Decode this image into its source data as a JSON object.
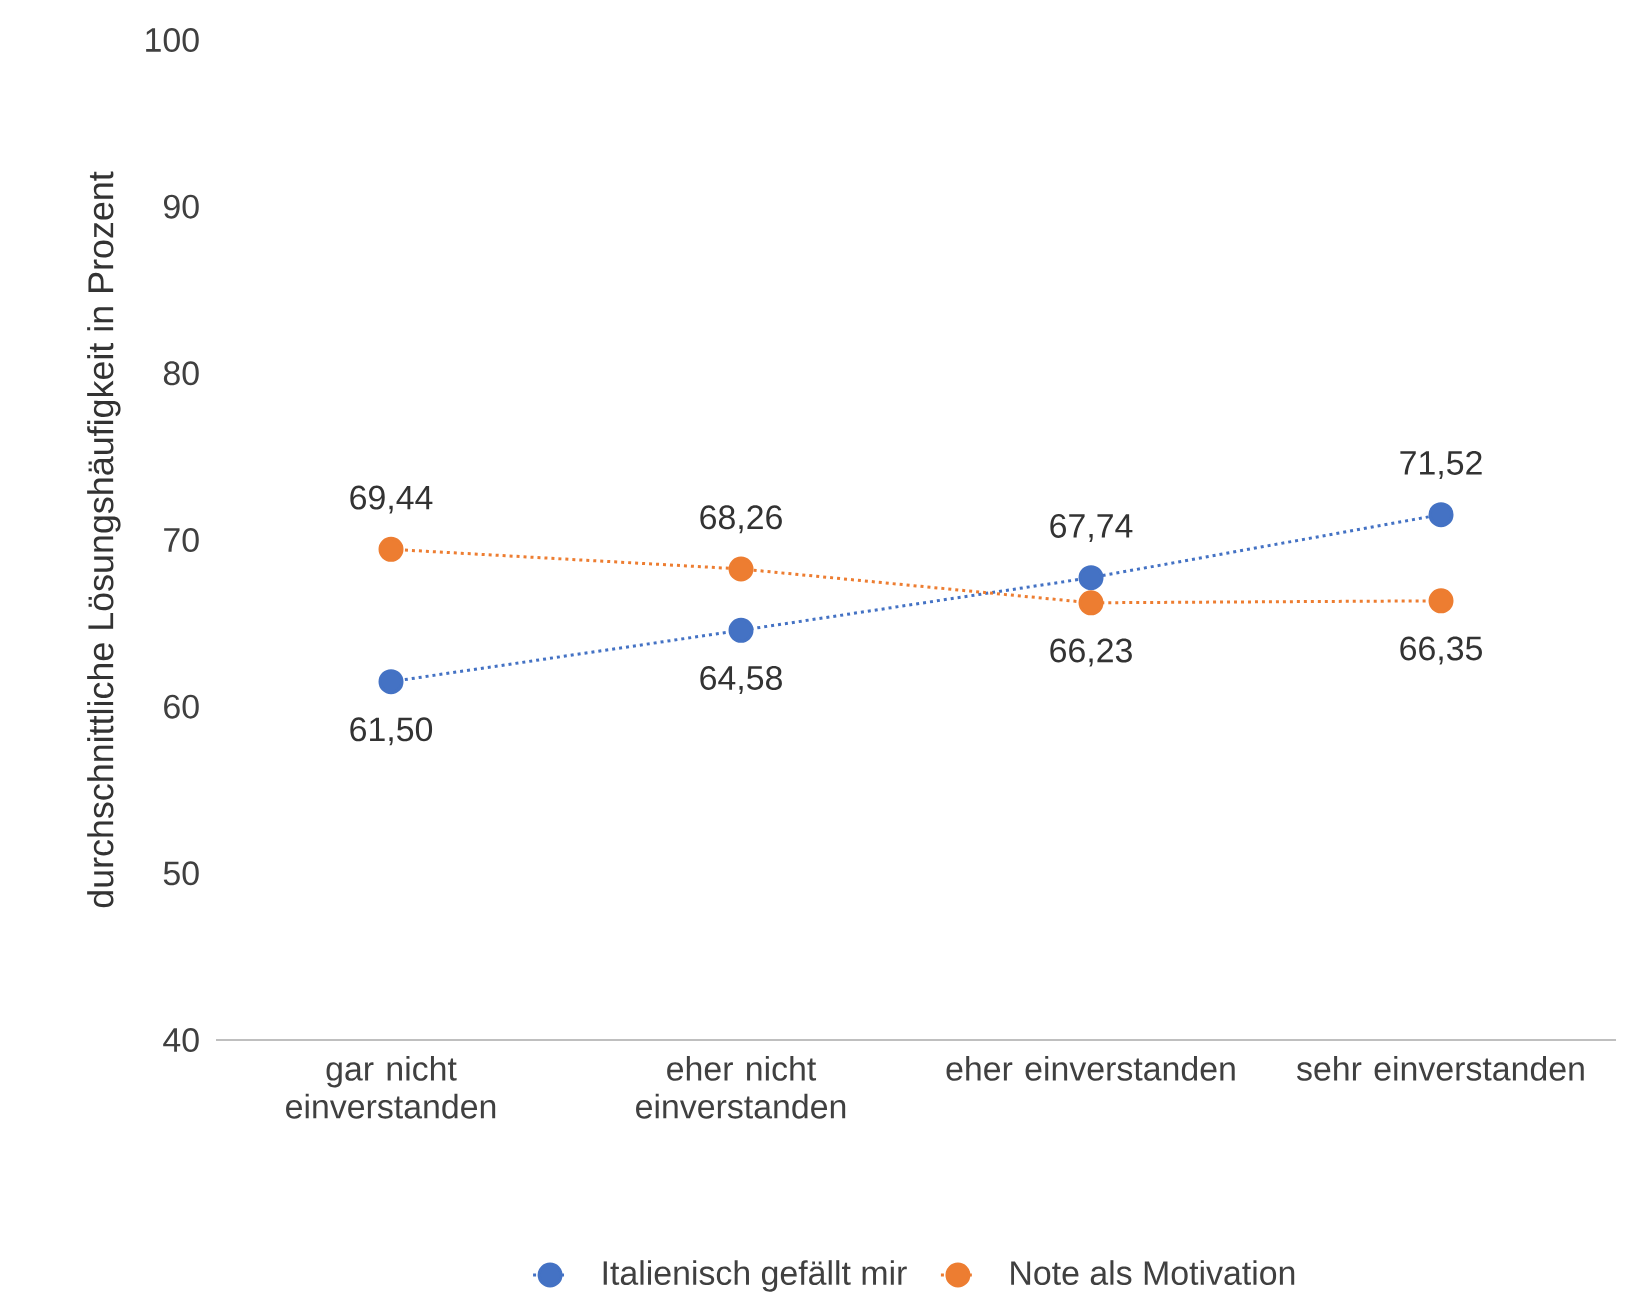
{
  "chart_data": {
    "type": "line",
    "ylabel": "durchschnittliche Lösungshäufigkeit in Prozent",
    "categories": [
      "gar nicht einverstanden",
      "eher nicht einverstanden",
      "eher einverstanden",
      "sehr einverstanden"
    ],
    "series": [
      {
        "name": "Italienisch gefällt mir",
        "color": "#4472c4",
        "values": [
          61.5,
          64.58,
          67.74,
          71.52
        ],
        "value_labels": [
          "61,50",
          "64,58",
          "67,74",
          "71,52"
        ]
      },
      {
        "name": "Note als Motivation",
        "color": "#ed7d31",
        "values": [
          69.44,
          68.26,
          66.23,
          66.35
        ],
        "value_labels": [
          "69,44",
          "68,26",
          "66,23",
          "66,35"
        ]
      }
    ],
    "ylim": [
      40,
      100
    ],
    "yticks": [
      40,
      50,
      60,
      70,
      80,
      90,
      100
    ],
    "legend": "bottom",
    "marker": "circle",
    "line_style": "dotted"
  }
}
